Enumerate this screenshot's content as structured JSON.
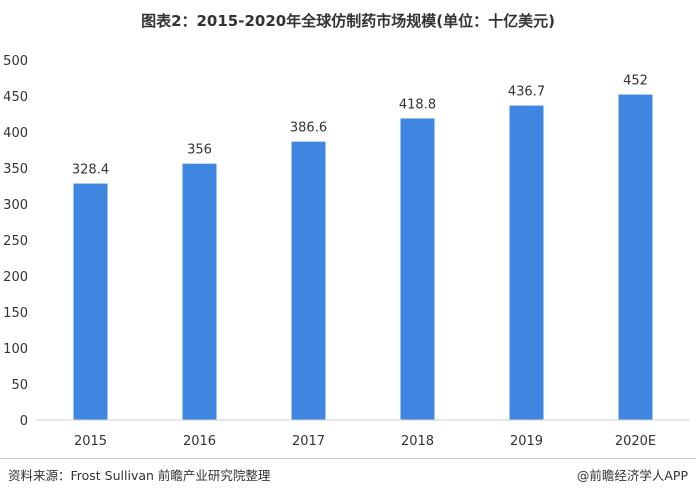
{
  "chart_data": {
    "type": "bar",
    "title": "图表2：2015-2020年全球仿制药市场规模(单位：十亿美元)",
    "categories": [
      "2015",
      "2016",
      "2017",
      "2018",
      "2019",
      "2020E"
    ],
    "values": [
      328.4,
      356,
      386.6,
      418.8,
      436.7,
      452
    ],
    "data_labels": [
      "328.4",
      "356",
      "386.6",
      "418.8",
      "436.7",
      "452"
    ],
    "yticks": [
      0,
      50,
      100,
      150,
      200,
      250,
      300,
      350,
      400,
      450,
      500
    ],
    "ylim": [
      0,
      500
    ],
    "xlabel": "",
    "ylabel": "",
    "grid": false,
    "bar_color": "#3f86e0"
  },
  "footer": {
    "source": "资料来源：Frost Sullivan 前瞻产业研究院整理",
    "copyright": "@前瞻经济学人APP"
  }
}
